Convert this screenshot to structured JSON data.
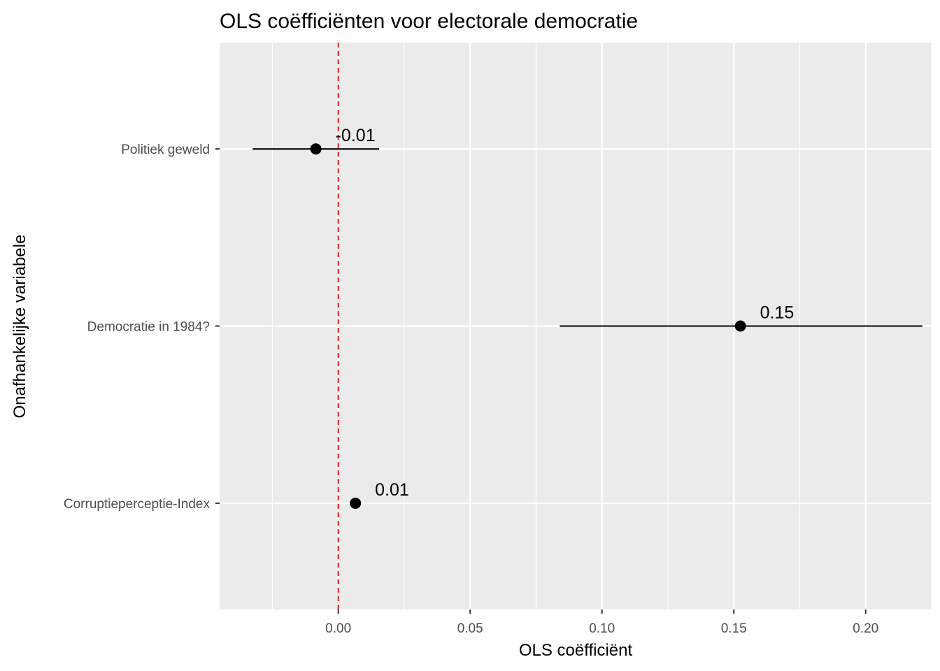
{
  "chart_data": {
    "type": "scatter",
    "title": "OLS coëfficiënten voor electorale democratie",
    "xlabel": "OLS coëfficiënt",
    "ylabel": "Onafhankelijke variabele",
    "xlim": [
      -0.045,
      0.225
    ],
    "x_ticks": [
      "0.00",
      "0.05",
      "0.10",
      "0.15",
      "0.20"
    ],
    "x_tick_values": [
      0.0,
      0.05,
      0.1,
      0.15,
      0.2
    ],
    "categories": [
      "Politiek geweld",
      "Democratie in 1984?",
      "Corruptieperceptie-Index"
    ],
    "estimates": [
      -0.0085,
      0.1525,
      0.0065
    ],
    "ci_low": [
      -0.0325,
      0.084,
      0.006
    ],
    "ci_high": [
      0.0155,
      0.2215,
      0.007
    ],
    "data_labels": [
      "-0.01",
      "0.15",
      "0.01"
    ],
    "reference_line": {
      "x": 0,
      "color": "#e41a1c",
      "style": "dashed"
    },
    "grid": true,
    "colors": {
      "panel": "#ebebeb",
      "grid": "#ffffff",
      "point": "#000000"
    }
  }
}
